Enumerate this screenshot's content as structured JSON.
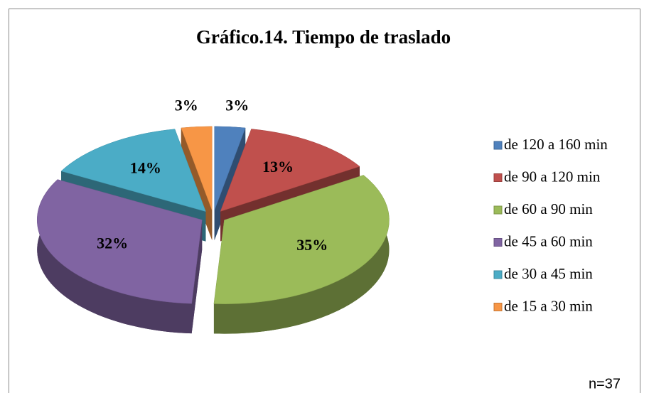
{
  "chart_data": {
    "type": "pie",
    "title": "Gráfico.14. Tiempo de traslado",
    "categories": [
      "de 120 a 160 min",
      "de 90 a 120 min",
      "de 60 a 90 min",
      "de 45 a 60 min",
      "de 30 a 45 min",
      "de 15 a 30 min"
    ],
    "values": [
      3,
      13,
      35,
      32,
      14,
      3
    ],
    "value_labels": [
      "3%",
      "13%",
      "35%",
      "32%",
      "14%",
      "3%"
    ],
    "colors": [
      "#4f81bd",
      "#c0504d",
      "#9bbb59",
      "#8064a2",
      "#4bacc6",
      "#f79646"
    ],
    "legend": "right",
    "annotation": "n=37"
  }
}
